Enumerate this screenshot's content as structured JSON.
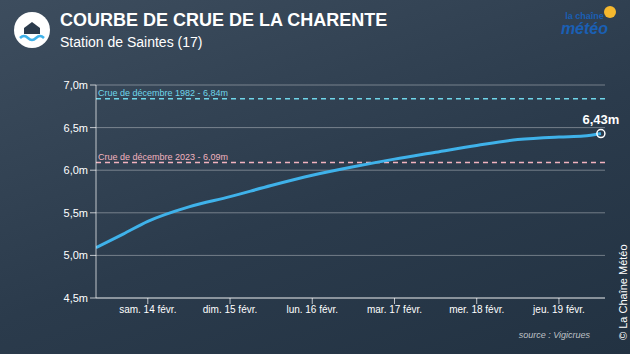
{
  "chart_data": {
    "type": "line",
    "title": "COURBE DE CRUE DE LA CHARENTE",
    "subtitle": "Station de Saintes (17)",
    "logo": [
      "la chaîne",
      "météo"
    ],
    "source": "source : Vigicrues",
    "copyright": "© La Chaîne Météo",
    "color": "#3fb2ea",
    "x": [
      13.37,
      13.7,
      14.0,
      14.5,
      15.0,
      15.5,
      16.0,
      16.5,
      17.0,
      17.5,
      18.0,
      18.5,
      19.0,
      19.3,
      19.51
    ],
    "values": [
      5.09,
      5.25,
      5.4,
      5.57,
      5.69,
      5.82,
      5.94,
      6.04,
      6.13,
      6.21,
      6.29,
      6.36,
      6.39,
      6.4,
      6.43
    ],
    "xlim": [
      13.37,
      19.56
    ],
    "xticks": [
      {
        "value": 14,
        "label": "sam. 14 févr."
      },
      {
        "value": 15,
        "label": "dim. 15 févr."
      },
      {
        "value": 16,
        "label": "lun. 16 févr."
      },
      {
        "value": 17,
        "label": "mar. 17 févr."
      },
      {
        "value": 18,
        "label": "mer. 18 févr."
      },
      {
        "value": 19,
        "label": "jeu. 19 févr."
      }
    ],
    "ylim": [
      4.5,
      7.0
    ],
    "yticks": [
      {
        "value": 4.5,
        "label": "4,5m"
      },
      {
        "value": 5.0,
        "label": "5,0m"
      },
      {
        "value": 5.5,
        "label": "5,5m"
      },
      {
        "value": 6.0,
        "label": "6,0m"
      },
      {
        "value": 6.5,
        "label": "6,5m"
      },
      {
        "value": 7.0,
        "label": "7,0m"
      }
    ],
    "grid": true,
    "reference_lines": [
      {
        "value": 6.84,
        "label": "Crue de décembre 1982 - 6,84m",
        "color": "#6fd6ea"
      },
      {
        "value": 6.09,
        "label": "Crue de décembre 2023 - 6,09m",
        "color": "#f2b3bf"
      }
    ],
    "annotations": [
      {
        "x": 19.51,
        "y": 6.43,
        "text": "6,43m"
      }
    ]
  }
}
